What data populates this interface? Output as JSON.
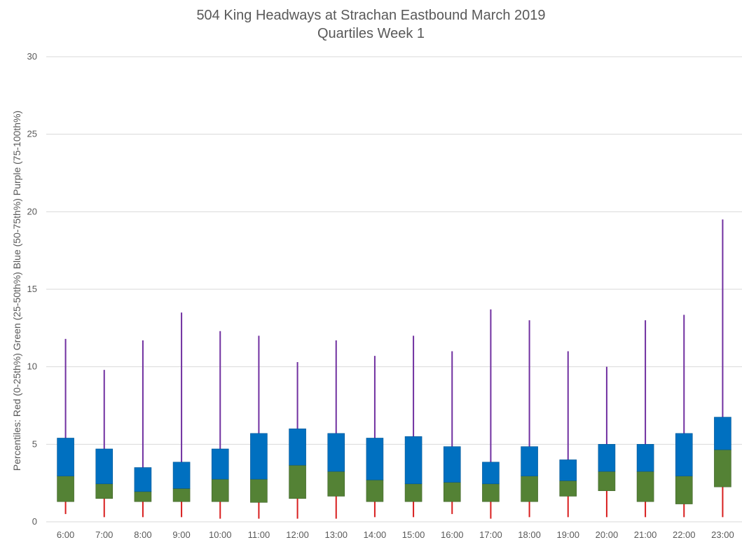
{
  "chart_data": {
    "type": "box",
    "title": "504 King Headways at Strachan Eastbound March 2019",
    "subtitle": "Quartiles Week 1",
    "xlabel": "",
    "ylabel": "Percentiles:  Red (0-25th%)  Green (25-50th%)  Blue (50-75th%)  Purple (75-100th%)",
    "ylim": [
      0,
      30
    ],
    "yticks": [
      "0",
      "5",
      "10",
      "15",
      "20",
      "25",
      "30"
    ],
    "grid": true,
    "colors": {
      "red_whisker": "#d81e1e",
      "green_q2": "#548235",
      "blue_q3": "#0070c0",
      "purple_whisker": "#7030a0",
      "grid": "#d9d9d9"
    },
    "categories": [
      "6:00",
      "7:00",
      "8:00",
      "9:00",
      "10:00",
      "11:00",
      "12:00",
      "13:00",
      "14:00",
      "15:00",
      "16:00",
      "17:00",
      "18:00",
      "19:00",
      "20:00",
      "21:00",
      "22:00",
      "23:00"
    ],
    "min": [
      0.5,
      0.3,
      0.3,
      0.3,
      0.2,
      0.2,
      0.2,
      0.2,
      0.3,
      0.3,
      0.5,
      0.2,
      0.3,
      0.3,
      0.3,
      0.3,
      0.3,
      0.3
    ],
    "q1": [
      1.3,
      1.5,
      1.3,
      1.3,
      1.3,
      1.25,
      1.5,
      1.65,
      1.3,
      1.3,
      1.3,
      1.3,
      1.3,
      1.65,
      2.0,
      1.3,
      1.15,
      2.25
    ],
    "median": [
      2.95,
      2.45,
      1.95,
      2.15,
      2.75,
      2.75,
      3.65,
      3.25,
      2.7,
      2.45,
      2.55,
      2.45,
      2.95,
      2.65,
      3.25,
      3.25,
      2.95,
      4.65
    ],
    "q3": [
      5.4,
      4.7,
      3.5,
      3.85,
      4.7,
      5.7,
      6.0,
      5.7,
      5.4,
      5.5,
      4.85,
      3.85,
      4.85,
      4.0,
      5.0,
      5.0,
      5.7,
      6.75
    ],
    "max": [
      11.8,
      9.8,
      11.7,
      13.5,
      12.3,
      12.0,
      10.3,
      11.7,
      10.7,
      12.0,
      11.0,
      13.7,
      13.0,
      11.0,
      10.0,
      13.0,
      13.35,
      19.5
    ]
  }
}
